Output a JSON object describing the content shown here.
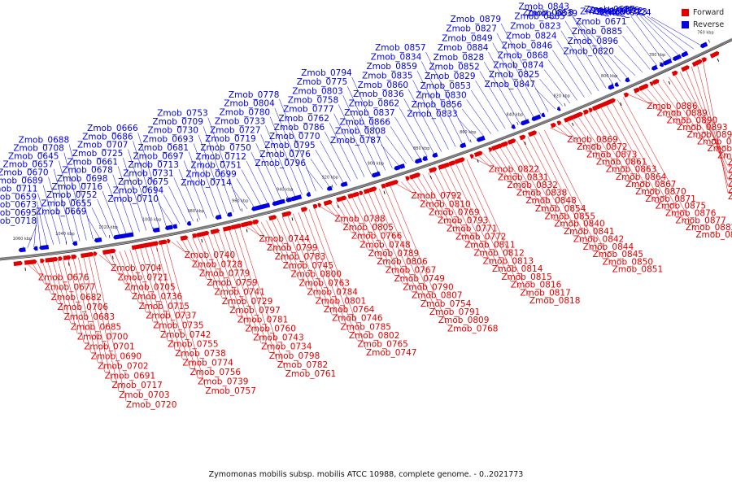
{
  "caption": "Zymomonas mobilis subsp. mobilis ATCC 10988, complete genome. - 0..2021773",
  "legend": {
    "forward_label": "Forward",
    "reverse_label": "Reverse"
  },
  "colors": {
    "forward": "#e00000",
    "reverse": "#0000e0",
    "backbone": "#7a7a7a",
    "tick": "#000000"
  },
  "ticks": [
    "760 kbp",
    "780 kbp",
    "800 kbp",
    "820 kbp",
    "840 kbp",
    "860 kbp",
    "880 kbp",
    "900 kbp",
    "920 kbp",
    "940 kbp",
    "960 kbp",
    "980 kbp",
    "1000 kbp",
    "1020 kbp",
    "1040 kbp",
    "1060 kbp"
  ],
  "reverse_labels": [
    "Zmob_0718",
    "Zmob_0695",
    "Zmob_0673",
    "Zmob_0659",
    "Zmob_0711",
    "Zmob_0689",
    "Zmob_0670",
    "Zmob_0657",
    "Zmob_0645",
    "Zmob_0708",
    "Zmob_0688",
    "Zmob_0669",
    "Zmob_0655",
    "Zmob_0752",
    "Zmob_0716",
    "Zmob_0698",
    "Zmob_0678",
    "Zmob_0661",
    "Zmob_0725",
    "Zmob_0707",
    "Zmob_0686",
    "Zmob_0666",
    "Zmob_0710",
    "Zmob_0694",
    "Zmob_0675",
    "Zmob_0731",
    "Zmob_0713",
    "Zmob_0697",
    "Zmob_0681",
    "Zmob_0693",
    "Zmob_0730",
    "Zmob_0709",
    "Zmob_0753",
    "Zmob_0714",
    "Zmob_0699",
    "Zmob_0751",
    "Zmob_0712",
    "Zmob_0750",
    "Zmob_0719",
    "Zmob_0727",
    "Zmob_0733",
    "Zmob_0780",
    "Zmob_0804",
    "Zmob_0778",
    "Zmob_0796",
    "Zmob_0776",
    "Zmob_0795",
    "Zmob_0770",
    "Zmob_0786",
    "Zmob_0762",
    "Zmob_0777",
    "Zmob_0758",
    "Zmob_0803",
    "Zmob_0775",
    "Zmob_0794",
    "Zmob_0787",
    "Zmob_0808",
    "Zmob_0866",
    "Zmob_0837",
    "Zmob_0862",
    "Zmob_0836",
    "Zmob_0860",
    "Zmob_0835",
    "Zmob_0859",
    "Zmob_0834",
    "Zmob_0857",
    "Zmob_0833",
    "Zmob_0856",
    "Zmob_0830",
    "Zmob_0853",
    "Zmob_0829",
    "Zmob_0852",
    "Zmob_0828",
    "Zmob_0884",
    "Zmob_0849",
    "Zmob_0827",
    "Zmob_0879",
    "Zmob_0847",
    "Zmob_0825",
    "Zmob_0874",
    "Zmob_0868",
    "Zmob_0846",
    "Zmob_0824",
    "Zmob_0823",
    "Zmob_0865",
    "Zmob_0843",
    "Zmob_0858",
    "Zmob_0839",
    "Zmob_0820",
    "Zmob_0896",
    "Zmob_0885",
    "Zmob_0671",
    "Zmob_0696",
    "Zmob_0687",
    "Zmob_0726",
    "Zmob_0722",
    "Zmob_0723",
    "Zmob_0724"
  ],
  "forward_labels": [
    "Zmob_0676",
    "Zmob_0677",
    "Zmob_0682",
    "Zmob_0706",
    "Zmob_0683",
    "Zmob_0685",
    "Zmob_0700",
    "Zmob_0701",
    "Zmob_0690",
    "Zmob_0702",
    "Zmob_0691",
    "Zmob_0717",
    "Zmob_0703",
    "Zmob_0720",
    "Zmob_0704",
    "Zmob_0721",
    "Zmob_0705",
    "Zmob_0736",
    "Zmob_0715",
    "Zmob_0737",
    "Zmob_0735",
    "Zmob_0742",
    "Zmob_0755",
    "Zmob_0738",
    "Zmob_0774",
    "Zmob_0756",
    "Zmob_0739",
    "Zmob_0757",
    "Zmob_0740",
    "Zmob_0728",
    "Zmob_0779",
    "Zmob_0759",
    "Zmob_0741",
    "Zmob_0729",
    "Zmob_0797",
    "Zmob_0781",
    "Zmob_0760",
    "Zmob_0743",
    "Zmob_0734",
    "Zmob_0798",
    "Zmob_0782",
    "Zmob_0761",
    "Zmob_0744",
    "Zmob_0799",
    "Zmob_0783",
    "Zmob_0745",
    "Zmob_0800",
    "Zmob_0763",
    "Zmob_0784",
    "Zmob_0801",
    "Zmob_0764",
    "Zmob_0746",
    "Zmob_0785",
    "Zmob_0802",
    "Zmob_0765",
    "Zmob_0747",
    "Zmob_0788",
    "Zmob_0805",
    "Zmob_0766",
    "Zmob_0748",
    "Zmob_0789",
    "Zmob_0806",
    "Zmob_0767",
    "Zmob_0749",
    "Zmob_0790",
    "Zmob_0807",
    "Zmob_0754",
    "Zmob_0791",
    "Zmob_0809",
    "Zmob_0768",
    "Zmob_0792",
    "Zmob_0810",
    "Zmob_0769",
    "Zmob_0793",
    "Zmob_0771",
    "Zmob_0772",
    "Zmob_0811",
    "Zmob_0812",
    "Zmob_0813",
    "Zmob_0814",
    "Zmob_0815",
    "Zmob_0816",
    "Zmob_0817",
    "Zmob_0818",
    "Zmob_0822",
    "Zmob_0831",
    "Zmob_0832",
    "Zmob_0838",
    "Zmob_0848",
    "Zmob_0854",
    "Zmob_0855",
    "Zmob_0840",
    "Zmob_0841",
    "Zmob_0842",
    "Zmob_0844",
    "Zmob_0845",
    "Zmob_0850",
    "Zmob_0851",
    "Zmob_0869",
    "Zmob_0872",
    "Zmob_0873",
    "Zmob_0861",
    "Zmob_0863",
    "Zmob_0864",
    "Zmob_0867",
    "Zmob_0870",
    "Zmob_0871",
    "Zmob_0875",
    "Zmob_0876",
    "Zmob_0877",
    "Zmob_0882",
    "Zmob_0898",
    "Zmob_0886",
    "Zmob_0889",
    "Zmob_0890",
    "Zmob_0893",
    "Zmob_0894",
    "Zmob_0895",
    "Zmob_0878",
    "Zmob_0880",
    "Zmob_0881",
    "Zmob_0883",
    "Zmob_0887",
    "Zmob_0888",
    "Zmob_0891",
    "Zmob_0892"
  ]
}
